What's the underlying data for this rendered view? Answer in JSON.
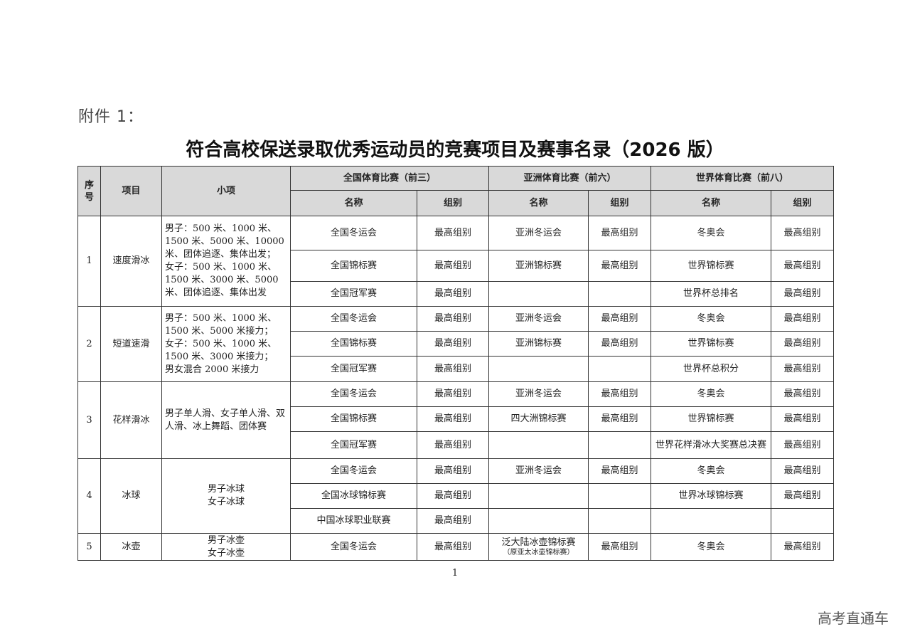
{
  "attachment_label": "附件 1：",
  "title": "符合高校保送录取优秀运动员的竞赛项目及赛事名录（2026 版）",
  "headers": {
    "seq": "序号",
    "sport": "项目",
    "events": "小项",
    "national": "全国体育比赛（前三）",
    "asian": "亚洲体育比赛（前六）",
    "world": "世界体育比赛（前八）",
    "name": "名称",
    "group": "组别"
  },
  "groups": [
    {
      "seq": "1",
      "sport": "速度滑冰",
      "events": "男子：500 米、1000 米、1500 米、5000 米、10000 米、团体追逐、集体出发；\n女子：500 米、1000 米、1500 米、3000 米、5000 米、团体追逐、集体出发",
      "rows": [
        {
          "n_name": "全国冬运会",
          "n_group": "最高组别",
          "a_name": "亚洲冬运会",
          "a_group": "最高组别",
          "w_name": "冬奥会",
          "w_group": "最高组别"
        },
        {
          "n_name": "全国锦标赛",
          "n_group": "最高组别",
          "a_name": "亚洲锦标赛",
          "a_group": "最高组别",
          "w_name": "世界锦标赛",
          "w_group": "最高组别"
        },
        {
          "n_name": "全国冠军赛",
          "n_group": "最高组别",
          "a_name": "",
          "a_group": "",
          "w_name": "世界杯总排名",
          "w_group": "最高组别"
        }
      ]
    },
    {
      "seq": "2",
      "sport": "短道速滑",
      "events": "男子：500 米、1000 米、1500 米、5000 米接力；\n女子：500 米、1000 米、1500 米、3000 米接力；\n男女混合 2000 米接力",
      "rows": [
        {
          "n_name": "全国冬运会",
          "n_group": "最高组别",
          "a_name": "亚洲冬运会",
          "a_group": "最高组别",
          "w_name": "冬奥会",
          "w_group": "最高组别"
        },
        {
          "n_name": "全国锦标赛",
          "n_group": "最高组别",
          "a_name": "亚洲锦标赛",
          "a_group": "最高组别",
          "w_name": "世界锦标赛",
          "w_group": "最高组别"
        },
        {
          "n_name": "全国冠军赛",
          "n_group": "最高组别",
          "a_name": "",
          "a_group": "",
          "w_name": "世界杯总积分",
          "w_group": "最高组别"
        }
      ]
    },
    {
      "seq": "3",
      "sport": "花样滑冰",
      "events": "男子单人滑、女子单人滑、双人滑、冰上舞蹈、团体赛",
      "rows": [
        {
          "n_name": "全国冬运会",
          "n_group": "最高组别",
          "a_name": "亚洲冬运会",
          "a_group": "最高组别",
          "w_name": "冬奥会",
          "w_group": "最高组别"
        },
        {
          "n_name": "全国锦标赛",
          "n_group": "最高组别",
          "a_name": "四大洲锦标赛",
          "a_group": "最高组别",
          "w_name": "世界锦标赛",
          "w_group": "最高组别"
        },
        {
          "n_name": "全国冠军赛",
          "n_group": "最高组别",
          "a_name": "",
          "a_group": "",
          "w_name": "世界花样滑冰大奖赛总决赛",
          "w_group": "最高组别"
        }
      ]
    },
    {
      "seq": "4",
      "sport": "冰球",
      "events": "男子冰球\n女子冰球",
      "center": true,
      "rows": [
        {
          "n_name": "全国冬运会",
          "n_group": "最高组别",
          "a_name": "亚洲冬运会",
          "a_group": "最高组别",
          "w_name": "冬奥会",
          "w_group": "最高组别"
        },
        {
          "n_name": "全国冰球锦标赛",
          "n_group": "最高组别",
          "a_name": "",
          "a_group": "",
          "w_name": "世界冰球锦标赛",
          "w_group": "最高组别"
        },
        {
          "n_name": "中国冰球职业联赛",
          "n_group": "最高组别",
          "a_name": "",
          "a_group": "",
          "w_name": "",
          "w_group": ""
        }
      ]
    },
    {
      "seq": "5",
      "sport": "冰壶",
      "events": "男子冰壶\n女子冰壶",
      "center": true,
      "rows": [
        {
          "n_name": "全国冬运会",
          "n_group": "最高组别",
          "a_name": "泛大陆冰壶锦标赛",
          "a_note": "（原亚太冰壶锦标赛）",
          "a_group": "最高组别",
          "w_name": "冬奥会",
          "w_group": "最高组别"
        }
      ]
    }
  ],
  "page_number": "1",
  "watermark": "高考直通车"
}
